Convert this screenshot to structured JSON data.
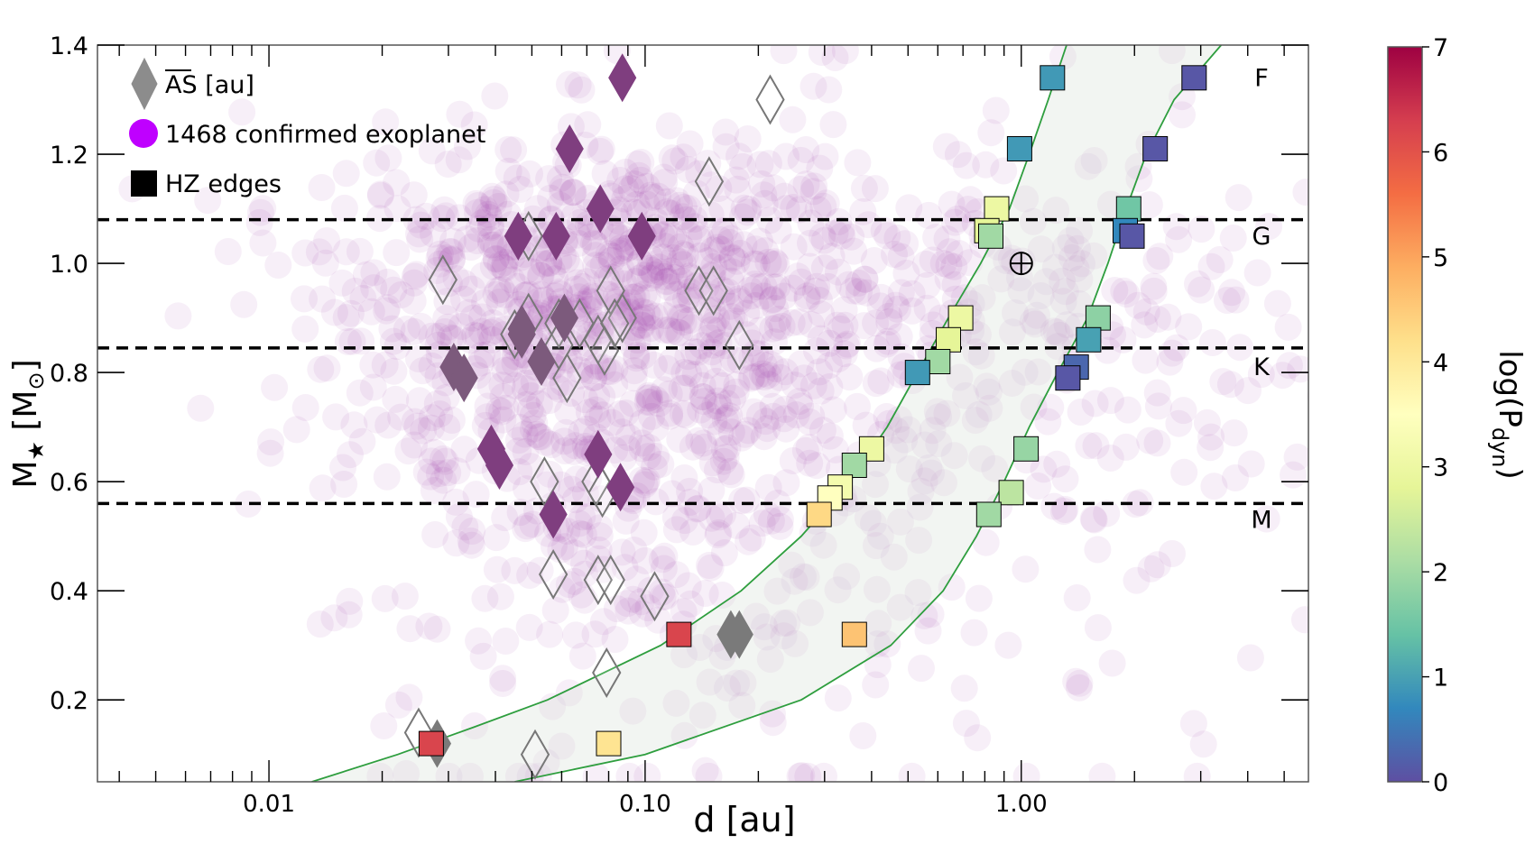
{
  "chart_data": {
    "type": "scatter",
    "xscale": "log",
    "xlabel": "d [au]",
    "ylabel": "M",
    "ylabel_sub": "★",
    "ylabel_unit_open": " [M",
    "ylabel_unit_sub": "⊙",
    "ylabel_unit_close": "]",
    "xlim": [
      0.0035,
      5.8
    ],
    "ylim": [
      0.05,
      1.4
    ],
    "xticks": [
      {
        "value": 0.01,
        "label": "0.01"
      },
      {
        "value": 0.1,
        "label": "0.10"
      },
      {
        "value": 1.0,
        "label": "1.00"
      }
    ],
    "yticks": [
      {
        "value": 0.2,
        "label": "0.2"
      },
      {
        "value": 0.4,
        "label": "0.4"
      },
      {
        "value": 0.6,
        "label": "0.6"
      },
      {
        "value": 0.8,
        "label": "0.8"
      },
      {
        "value": 1.0,
        "label": "1.0"
      },
      {
        "value": 1.2,
        "label": "1.2"
      },
      {
        "value": 1.4,
        "label": "1.4"
      }
    ],
    "legend": {
      "placement": "top-left",
      "items": [
        {
          "label": "AS [au]",
          "marker": "diamond",
          "color": "#8c8c8c",
          "overline": "AS"
        },
        {
          "label": "1468 confirmed exoplanet",
          "marker": "circle",
          "color": "#bf00ff"
        },
        {
          "label": "HZ edges",
          "marker": "square",
          "color": "#000000"
        }
      ]
    },
    "spectral_classes": [
      {
        "label": "F",
        "y": 1.34
      },
      {
        "label": "G",
        "y": 1.05
      },
      {
        "label": "K",
        "y": 0.81
      },
      {
        "label": "M",
        "y": 0.53
      }
    ],
    "class_boundaries": [
      1.08,
      0.845,
      0.56
    ],
    "earth_marker": {
      "x": 1.0,
      "y": 1.0,
      "symbol": "⊕"
    },
    "colorbar": {
      "label": "log(P",
      "label_sub": "dyn",
      "label_close": ")",
      "min": 0,
      "max": 7,
      "ticks": [
        "0",
        "1",
        "2",
        "3",
        "4",
        "5",
        "6",
        "7"
      ]
    },
    "exoplanet_population": {
      "count": 1468,
      "color": "#8b1a9e",
      "opacity": 0.07
    },
    "hz_inner_curve": [
      {
        "m": 0.05,
        "d": 0.013
      },
      {
        "m": 0.1,
        "d": 0.022
      },
      {
        "m": 0.15,
        "d": 0.035
      },
      {
        "m": 0.2,
        "d": 0.055
      },
      {
        "m": 0.3,
        "d": 0.11
      },
      {
        "m": 0.4,
        "d": 0.18
      },
      {
        "m": 0.5,
        "d": 0.26
      },
      {
        "m": 0.6,
        "d": 0.35
      },
      {
        "m": 0.7,
        "d": 0.44
      },
      {
        "m": 0.8,
        "d": 0.53
      },
      {
        "m": 0.9,
        "d": 0.64
      },
      {
        "m": 1.0,
        "d": 0.78
      },
      {
        "m": 1.1,
        "d": 0.93
      },
      {
        "m": 1.2,
        "d": 1.05
      },
      {
        "m": 1.3,
        "d": 1.18
      },
      {
        "m": 1.4,
        "d": 1.32
      }
    ],
    "hz_outer_curve": [
      {
        "m": 0.05,
        "d": 0.045
      },
      {
        "m": 0.1,
        "d": 0.1
      },
      {
        "m": 0.2,
        "d": 0.26
      },
      {
        "m": 0.3,
        "d": 0.45
      },
      {
        "m": 0.4,
        "d": 0.62
      },
      {
        "m": 0.5,
        "d": 0.76
      },
      {
        "m": 0.6,
        "d": 0.9
      },
      {
        "m": 0.7,
        "d": 1.05
      },
      {
        "m": 0.8,
        "d": 1.25
      },
      {
        "m": 0.9,
        "d": 1.5
      },
      {
        "m": 1.0,
        "d": 1.7
      },
      {
        "m": 1.1,
        "d": 1.9
      },
      {
        "m": 1.2,
        "d": 2.15
      },
      {
        "m": 1.3,
        "d": 2.55
      },
      {
        "m": 1.4,
        "d": 3.4
      }
    ],
    "hz_edges": [
      {
        "d": 1.21,
        "m": 1.34,
        "logP": 0.9
      },
      {
        "d": 2.88,
        "m": 1.34,
        "logP": 0.1
      },
      {
        "d": 0.99,
        "m": 1.21,
        "logP": 0.9
      },
      {
        "d": 2.27,
        "m": 1.21,
        "logP": 0.1
      },
      {
        "d": 0.86,
        "m": 1.1,
        "logP": 3.0
      },
      {
        "d": 0.81,
        "m": 1.06,
        "logP": 2.8
      },
      {
        "d": 0.83,
        "m": 1.05,
        "logP": 2.0
      },
      {
        "d": 1.93,
        "m": 1.1,
        "logP": 1.5
      },
      {
        "d": 1.89,
        "m": 1.06,
        "logP": 0.7
      },
      {
        "d": 1.97,
        "m": 1.05,
        "logP": 0.1
      },
      {
        "d": 0.69,
        "m": 0.9,
        "logP": 3.0
      },
      {
        "d": 0.64,
        "m": 0.86,
        "logP": 2.8
      },
      {
        "d": 0.6,
        "m": 0.82,
        "logP": 2.0
      },
      {
        "d": 0.53,
        "m": 0.8,
        "logP": 0.9
      },
      {
        "d": 1.6,
        "m": 0.9,
        "logP": 1.8
      },
      {
        "d": 1.51,
        "m": 0.86,
        "logP": 1.0
      },
      {
        "d": 1.4,
        "m": 0.81,
        "logP": 0.3
      },
      {
        "d": 1.33,
        "m": 0.79,
        "logP": 0.1
      },
      {
        "d": 0.4,
        "m": 0.66,
        "logP": 3.0
      },
      {
        "d": 0.36,
        "m": 0.63,
        "logP": 2.0
      },
      {
        "d": 0.33,
        "m": 0.59,
        "logP": 3.2
      },
      {
        "d": 0.31,
        "m": 0.57,
        "logP": 3.5
      },
      {
        "d": 0.29,
        "m": 0.54,
        "logP": 4.3
      },
      {
        "d": 1.03,
        "m": 0.66,
        "logP": 1.9
      },
      {
        "d": 0.94,
        "m": 0.58,
        "logP": 2.3
      },
      {
        "d": 0.82,
        "m": 0.54,
        "logP": 2.0
      },
      {
        "d": 0.123,
        "m": 0.32,
        "logP": 6.2
      },
      {
        "d": 0.36,
        "m": 0.32,
        "logP": 4.6
      },
      {
        "d": 0.027,
        "m": 0.12,
        "logP": 6.2
      },
      {
        "d": 0.08,
        "m": 0.12,
        "logP": 4.1
      }
    ],
    "as_filled": [
      {
        "d": 0.087,
        "m": 1.34
      },
      {
        "d": 0.063,
        "m": 1.21
      },
      {
        "d": 0.076,
        "m": 1.1
      },
      {
        "d": 0.046,
        "m": 1.05
      },
      {
        "d": 0.058,
        "m": 1.05
      },
      {
        "d": 0.098,
        "m": 1.05
      },
      {
        "d": 0.061,
        "m": 0.9
      },
      {
        "d": 0.047,
        "m": 0.87
      },
      {
        "d": 0.053,
        "m": 0.82
      },
      {
        "d": 0.031,
        "m": 0.81
      },
      {
        "d": 0.033,
        "m": 0.79
      },
      {
        "d": 0.039,
        "m": 0.66
      },
      {
        "d": 0.041,
        "m": 0.63
      },
      {
        "d": 0.075,
        "m": 0.65
      },
      {
        "d": 0.086,
        "m": 0.59
      },
      {
        "d": 0.057,
        "m": 0.54
      },
      {
        "d": 0.028,
        "m": 0.12
      },
      {
        "d": 0.169,
        "m": 0.32
      },
      {
        "d": 0.178,
        "m": 0.32
      },
      {
        "d": 0.047,
        "m": 0.88
      }
    ],
    "as_open": [
      {
        "d": 0.215,
        "m": 1.3
      },
      {
        "d": 0.148,
        "m": 1.15
      },
      {
        "d": 0.049,
        "m": 1.05
      },
      {
        "d": 0.029,
        "m": 0.97
      },
      {
        "d": 0.081,
        "m": 0.95
      },
      {
        "d": 0.139,
        "m": 0.95
      },
      {
        "d": 0.152,
        "m": 0.95
      },
      {
        "d": 0.087,
        "m": 0.9
      },
      {
        "d": 0.049,
        "m": 0.9
      },
      {
        "d": 0.059,
        "m": 0.89
      },
      {
        "d": 0.067,
        "m": 0.89
      },
      {
        "d": 0.075,
        "m": 0.86
      },
      {
        "d": 0.083,
        "m": 0.89
      },
      {
        "d": 0.045,
        "m": 0.87
      },
      {
        "d": 0.178,
        "m": 0.85
      },
      {
        "d": 0.059,
        "m": 0.85
      },
      {
        "d": 0.078,
        "m": 0.84
      },
      {
        "d": 0.062,
        "m": 0.79
      },
      {
        "d": 0.054,
        "m": 0.6
      },
      {
        "d": 0.074,
        "m": 0.6
      },
      {
        "d": 0.077,
        "m": 0.58
      },
      {
        "d": 0.057,
        "m": 0.43
      },
      {
        "d": 0.075,
        "m": 0.42
      },
      {
        "d": 0.081,
        "m": 0.42
      },
      {
        "d": 0.106,
        "m": 0.39
      },
      {
        "d": 0.079,
        "m": 0.25
      },
      {
        "d": 0.025,
        "m": 0.14
      },
      {
        "d": 0.051,
        "m": 0.1
      }
    ]
  }
}
